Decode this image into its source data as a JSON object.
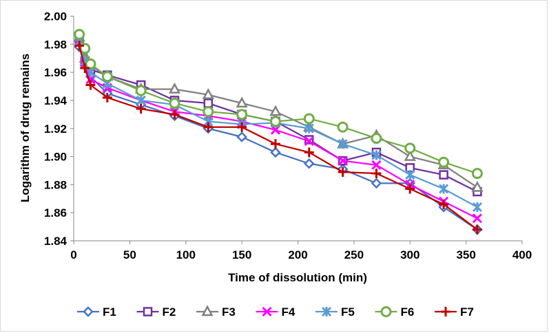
{
  "chart_data": {
    "type": "line",
    "title": "",
    "xlabel": "Time of dissolution (min)",
    "ylabel": "Logarithm of drug remains",
    "xlim": [
      0,
      400
    ],
    "ylim": [
      1.84,
      2.0
    ],
    "xticks": [
      0,
      50,
      100,
      150,
      200,
      250,
      300,
      350,
      400
    ],
    "yticks": [
      "1.84",
      "1.86",
      "1.88",
      "1.90",
      "1.92",
      "1.94",
      "1.96",
      "1.98",
      "2.00"
    ],
    "grid": false,
    "legend_position": "bottom",
    "x": [
      5,
      10,
      15,
      30,
      60,
      90,
      120,
      150,
      180,
      210,
      240,
      270,
      300,
      330,
      360
    ],
    "series": [
      {
        "name": "F1",
        "color": "#4472C4",
        "marker": "diamond",
        "values": [
          1.978,
          1.965,
          1.957,
          1.945,
          1.937,
          1.929,
          1.92,
          1.914,
          1.903,
          1.895,
          1.891,
          1.881,
          1.881,
          1.864,
          1.848
        ]
      },
      {
        "name": "F2",
        "color": "#7030A0",
        "marker": "square",
        "values": [
          1.984,
          1.968,
          1.962,
          1.958,
          1.951,
          1.94,
          1.938,
          1.93,
          1.925,
          1.912,
          1.897,
          1.903,
          1.892,
          1.887,
          1.875
        ]
      },
      {
        "name": "F3",
        "color": "#808080",
        "marker": "triangle",
        "values": [
          1.985,
          1.97,
          1.965,
          1.957,
          1.948,
          1.948,
          1.944,
          1.938,
          1.932,
          1.921,
          1.909,
          1.915,
          1.9,
          1.894,
          1.878
        ]
      },
      {
        "name": "F4",
        "color": "#FF00FF",
        "marker": "x",
        "values": [
          1.983,
          1.966,
          1.955,
          1.949,
          1.94,
          1.932,
          1.929,
          1.925,
          1.919,
          1.911,
          1.897,
          1.894,
          1.88,
          1.868,
          1.856
        ]
      },
      {
        "name": "F5",
        "color": "#5B9BD5",
        "marker": "asterisk",
        "values": [
          1.982,
          1.968,
          1.96,
          1.952,
          1.94,
          1.937,
          1.925,
          1.923,
          1.924,
          1.92,
          1.909,
          1.901,
          1.887,
          1.877,
          1.864
        ]
      },
      {
        "name": "F6",
        "color": "#70AD47",
        "marker": "circle",
        "values": [
          1.987,
          1.977,
          1.966,
          1.957,
          1.947,
          1.938,
          1.932,
          1.93,
          1.925,
          1.927,
          1.921,
          1.913,
          1.906,
          1.896,
          1.888
        ]
      },
      {
        "name": "F7",
        "color": "#C00000",
        "marker": "plus",
        "values": [
          1.979,
          1.963,
          1.951,
          1.942,
          1.934,
          1.93,
          1.921,
          1.921,
          1.909,
          1.903,
          1.889,
          1.888,
          1.877,
          1.866,
          1.848
        ]
      }
    ]
  }
}
